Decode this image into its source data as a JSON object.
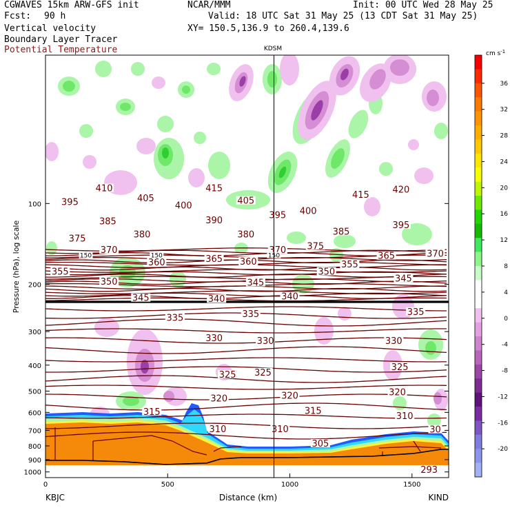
{
  "header": {
    "model": "CGWAVES 15km ARW-GFS init",
    "fcst_label": "Fcst:",
    "fcst_value": "90 h",
    "org": "NCAR/MMM",
    "init": "Init: 00 UTC Wed 28 May 25",
    "valid": "Valid: 18 UTC Sat 31 May 25 (13 CDT Sat 31 May 25)",
    "xy": "XY= 150.5,136.9 to 260.4,139.6",
    "field1": "Vertical velocity",
    "field2": "Boundary Layer Tracer",
    "field3": "Potential Temperature"
  },
  "colors": {
    "theta_contour": "#6b0000",
    "terrain_fill": "#f5890a",
    "terrain_line": "#6b0000",
    "up_light": "#aaf5a8",
    "up_mid": "#6fe86a",
    "up_strong": "#2ecf2e",
    "down_light": "#f0c0ef",
    "down_mid": "#d58ed4",
    "down_strong": "#9b3fa8",
    "blue_band": "#1e5cff",
    "cyan_band": "#2fd8ff",
    "yellow_band": "#fff03a"
  },
  "chart_data": {
    "type": "heatmap",
    "title": "KDSM",
    "xlabel": "Distance (km)",
    "ylabel": "Pressure (hPa), log scale",
    "x_range": [
      0,
      1650
    ],
    "x_ticks": [
      0,
      500,
      1000,
      1500
    ],
    "y_range": [
      1050,
      28
    ],
    "y_scale": "log",
    "y_ticks": [
      100,
      200,
      300,
      400,
      500,
      600,
      700,
      800,
      900,
      1000
    ],
    "left_station": "KBJC",
    "right_station": "KIND",
    "vertical_line_x": 935,
    "tropopause_pressure": 155,
    "pv_labels": [
      {
        "x": 165,
        "p": 157,
        "text": "150"
      },
      {
        "x": 455,
        "p": 157,
        "text": "150"
      },
      {
        "x": 935,
        "p": 157,
        "text": "150"
      }
    ],
    "theta_labels": [
      {
        "x": 240,
        "p": 89,
        "text": "410"
      },
      {
        "x": 690,
        "p": 89,
        "text": "415"
      },
      {
        "x": 1290,
        "p": 94,
        "text": "415"
      },
      {
        "x": 1455,
        "p": 90,
        "text": "420"
      },
      {
        "x": 100,
        "p": 100,
        "text": "395"
      },
      {
        "x": 410,
        "p": 97,
        "text": "405"
      },
      {
        "x": 565,
        "p": 103,
        "text": "400"
      },
      {
        "x": 820,
        "p": 99,
        "text": "405"
      },
      {
        "x": 950,
        "p": 112,
        "text": "395"
      },
      {
        "x": 1075,
        "p": 108,
        "text": "400"
      },
      {
        "x": 255,
        "p": 118,
        "text": "385"
      },
      {
        "x": 690,
        "p": 117,
        "text": "390"
      },
      {
        "x": 1210,
        "p": 129,
        "text": "385"
      },
      {
        "x": 1455,
        "p": 122,
        "text": "395"
      },
      {
        "x": 395,
        "p": 132,
        "text": "380"
      },
      {
        "x": 820,
        "p": 132,
        "text": "380"
      },
      {
        "x": 130,
        "p": 137,
        "text": "375"
      },
      {
        "x": 1105,
        "p": 146,
        "text": "375"
      },
      {
        "x": 260,
        "p": 151,
        "text": "370"
      },
      {
        "x": 950,
        "p": 151,
        "text": "370"
      },
      {
        "x": 1595,
        "p": 156,
        "text": "370"
      },
      {
        "x": 690,
        "p": 163,
        "text": "365"
      },
      {
        "x": 1395,
        "p": 159,
        "text": "365"
      },
      {
        "x": 455,
        "p": 168,
        "text": "360"
      },
      {
        "x": 830,
        "p": 167,
        "text": "360"
      },
      {
        "x": 1245,
        "p": 171,
        "text": "355"
      },
      {
        "x": 60,
        "p": 182,
        "text": "355"
      },
      {
        "x": 1150,
        "p": 182,
        "text": "350"
      },
      {
        "x": 260,
        "p": 198,
        "text": "350"
      },
      {
        "x": 860,
        "p": 200,
        "text": "345"
      },
      {
        "x": 1465,
        "p": 193,
        "text": "345"
      },
      {
        "x": 390,
        "p": 228,
        "text": "345"
      },
      {
        "x": 700,
        "p": 230,
        "text": "340"
      },
      {
        "x": 1000,
        "p": 225,
        "text": "340"
      },
      {
        "x": 840,
        "p": 262,
        "text": "335"
      },
      {
        "x": 530,
        "p": 270,
        "text": "335"
      },
      {
        "x": 1515,
        "p": 257,
        "text": "335"
      },
      {
        "x": 690,
        "p": 322,
        "text": "330"
      },
      {
        "x": 900,
        "p": 330,
        "text": "330"
      },
      {
        "x": 1425,
        "p": 330,
        "text": "330"
      },
      {
        "x": 1450,
        "p": 412,
        "text": "325"
      },
      {
        "x": 745,
        "p": 440,
        "text": "325"
      },
      {
        "x": 890,
        "p": 432,
        "text": "325"
      },
      {
        "x": 710,
        "p": 540,
        "text": "320"
      },
      {
        "x": 1000,
        "p": 528,
        "text": "320"
      },
      {
        "x": 1440,
        "p": 512,
        "text": "320"
      },
      {
        "x": 435,
        "p": 605,
        "text": "315"
      },
      {
        "x": 1095,
        "p": 600,
        "text": "315"
      },
      {
        "x": 1470,
        "p": 628,
        "text": "310"
      },
      {
        "x": 705,
        "p": 702,
        "text": "310"
      },
      {
        "x": 960,
        "p": 702,
        "text": "310"
      },
      {
        "x": 1125,
        "p": 795,
        "text": "305"
      },
      {
        "x": 1595,
        "p": 705,
        "text": "30"
      },
      {
        "x": 1570,
        "p": 995,
        "text": "293"
      }
    ],
    "colorbar": {
      "unit": "cm s",
      "unit_exp": "-1",
      "ticks": [
        "36",
        "32",
        "28",
        "24",
        "20",
        "16",
        "12",
        "8",
        "4",
        "0",
        "-4",
        "-8",
        "-12",
        "-16",
        "-20"
      ],
      "colors": [
        "#f80000",
        "#fb2a00",
        "#fc5500",
        "#fd7a00",
        "#ff9400",
        "#ffae00",
        "#ffc800",
        "#ffe600",
        "#f5ff00",
        "#bff500",
        "#6fe800",
        "#22d400",
        "#16b800",
        "#40e860",
        "#8ef58c",
        "#c8fbc6",
        "#ffffff",
        "#ffffff",
        "#f0c0ef",
        "#e2a2e1",
        "#ce84cd",
        "#b866bc",
        "#9a47a8",
        "#7e2b92",
        "#5d127c",
        "#7b2ba2",
        "#7e55c7",
        "#7f7de0",
        "#8b95ec",
        "#a2b0f4"
      ]
    }
  }
}
